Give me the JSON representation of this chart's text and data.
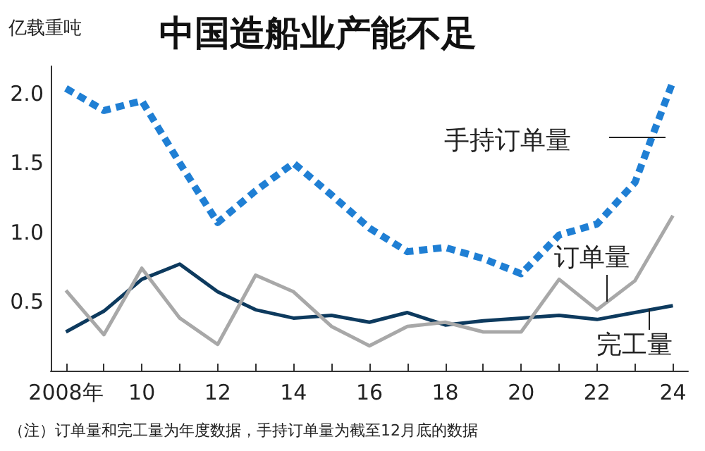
{
  "chart_data": {
    "type": "line",
    "title": "中国造船业产能不足",
    "ylabel": "亿载重吨",
    "x": [
      2008,
      2009,
      2010,
      2011,
      2012,
      2013,
      2014,
      2015,
      2016,
      2017,
      2018,
      2019,
      2020,
      2021,
      2022,
      2023,
      2024
    ],
    "series": [
      {
        "name": "手持订单量",
        "color": "#1f7fd4",
        "line_style": "dotted",
        "values": [
          2.04,
          1.88,
          1.95,
          1.5,
          1.07,
          1.3,
          1.5,
          1.27,
          1.03,
          0.86,
          0.89,
          0.81,
          0.7,
          0.98,
          1.06,
          1.36,
          2.09
        ]
      },
      {
        "name": "订单量",
        "color": "#a8a8a8",
        "values": [
          0.58,
          0.26,
          0.74,
          0.38,
          0.19,
          0.69,
          0.57,
          0.32,
          0.18,
          0.32,
          0.35,
          0.28,
          0.28,
          0.66,
          0.44,
          0.65,
          1.12
        ]
      },
      {
        "name": "完工量",
        "color": "#0d3a5e",
        "values": [
          0.28,
          0.43,
          0.66,
          0.77,
          0.57,
          0.44,
          0.38,
          0.4,
          0.35,
          0.42,
          0.33,
          0.36,
          0.38,
          0.4,
          0.37,
          0.42,
          0.47
        ]
      }
    ],
    "xlim": [
      2007.6,
      2024.4
    ],
    "xticks": [
      {
        "value": 2008,
        "label": "2008年"
      },
      {
        "value": 2009,
        "label": null
      },
      {
        "value": 2010,
        "label": "10"
      },
      {
        "value": 2011,
        "label": null
      },
      {
        "value": 2012,
        "label": "12"
      },
      {
        "value": 2013,
        "label": null
      },
      {
        "value": 2014,
        "label": "14"
      },
      {
        "value": 2015,
        "label": null
      },
      {
        "value": 2016,
        "label": "16"
      },
      {
        "value": 2017,
        "label": null
      },
      {
        "value": 2018,
        "label": "18"
      },
      {
        "value": 2019,
        "label": null
      },
      {
        "value": 2020,
        "label": "20"
      },
      {
        "value": 2021,
        "label": null
      },
      {
        "value": 2022,
        "label": "22"
      },
      {
        "value": 2023,
        "label": null
      },
      {
        "value": 2024,
        "label": "24"
      }
    ],
    "ylim": [
      0,
      2.2
    ],
    "yticks": [
      0.5,
      {
        "value": 1,
        "label": "1.0"
      },
      1.5,
      {
        "value": 2,
        "label": "2.0"
      }
    ],
    "grid": false,
    "legend": false,
    "marker": "none",
    "line_style": "solid",
    "annotations": [
      "（注）订单量和完工量为年度数据，手持订单量为截至12月底的数据"
    ]
  }
}
